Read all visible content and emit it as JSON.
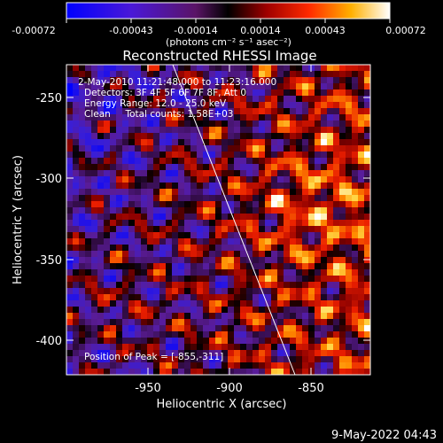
{
  "colorbar": {
    "ticks": [
      "-0.00072",
      "-0.00043",
      "-0.00014",
      "0.00014",
      "0.00043",
      "0.00072"
    ],
    "units": "(photons cm⁻² s⁻¹ asec⁻²)"
  },
  "title": "Reconstructed RHESSI Image",
  "info": {
    "time_range": "2-May-2010 11:21:48.000 to 11:23:16.000",
    "detectors": "Detectors: 3F 4F 5F 6F 7F 8F, Att 0",
    "energy": "Energy Range: 12.0 - 25.0 keV",
    "clean": "Clean     Total counts: 1.58E+03",
    "peak": "Position of Peak = [-855,-311]"
  },
  "axes": {
    "x_label": "Heliocentric X (arcsec)",
    "y_label": "Heliocentric Y (arcsec)",
    "x_ticks": [
      "-950",
      "-900",
      "-850"
    ],
    "y_ticks": [
      "-250",
      "-300",
      "-350",
      "-400"
    ]
  },
  "footer_date": "9-May-2022 04:43",
  "palette": {
    "neg_max": "#0000ff",
    "neg_mid": "#6b2fd6",
    "zero": "#000000",
    "pos_low": "#b00000",
    "pos_mid": "#ff5a00",
    "pos_high": "#ffd23c",
    "pos_max": "#ffffff"
  }
}
